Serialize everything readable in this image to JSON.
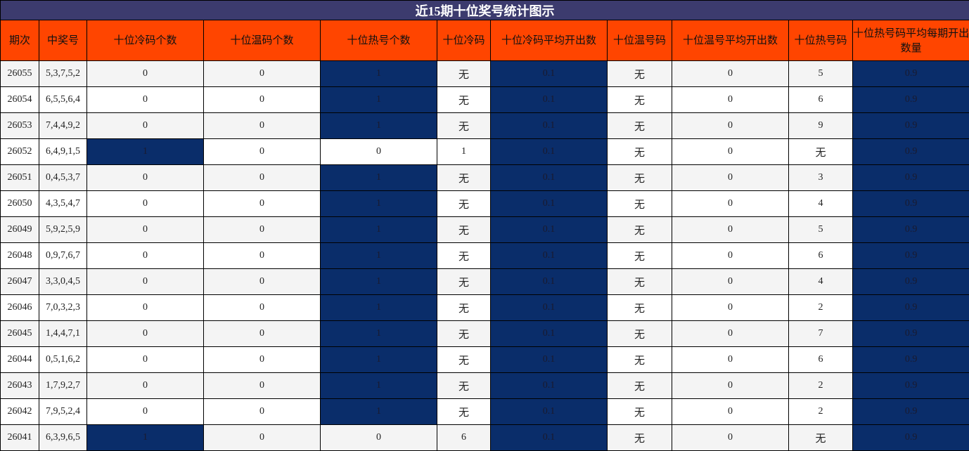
{
  "title": "近15期十位奖号统计图示",
  "highlight_color": "#0a2d6a",
  "header_color": "#ff4500",
  "headers": [
    "期次",
    "中奖号",
    "十位冷码个数",
    "十位温码个数",
    "十位热号个数",
    "十位冷码",
    "十位冷码平均开出数",
    "十位温号码",
    "十位温号平均开出数",
    "十位热号码",
    "十位热号码平均每期开出数量"
  ],
  "rows": [
    [
      "26055",
      "5,3,7,5,2",
      "0",
      "0",
      "1",
      "无",
      "0.1",
      "无",
      "0",
      "5",
      "0.9"
    ],
    [
      "26054",
      "6,5,5,6,4",
      "0",
      "0",
      "1",
      "无",
      "0.1",
      "无",
      "0",
      "6",
      "0.9"
    ],
    [
      "26053",
      "7,4,4,9,2",
      "0",
      "0",
      "1",
      "无",
      "0.1",
      "无",
      "0",
      "9",
      "0.9"
    ],
    [
      "26052",
      "6,4,9,1,5",
      "1",
      "0",
      "0",
      "1",
      "0.1",
      "无",
      "0",
      "无",
      "0.9"
    ],
    [
      "26051",
      "0,4,5,3,7",
      "0",
      "0",
      "1",
      "无",
      "0.1",
      "无",
      "0",
      "3",
      "0.9"
    ],
    [
      "26050",
      "4,3,5,4,7",
      "0",
      "0",
      "1",
      "无",
      "0.1",
      "无",
      "0",
      "4",
      "0.9"
    ],
    [
      "26049",
      "5,9,2,5,9",
      "0",
      "0",
      "1",
      "无",
      "0.1",
      "无",
      "0",
      "5",
      "0.9"
    ],
    [
      "26048",
      "0,9,7,6,7",
      "0",
      "0",
      "1",
      "无",
      "0.1",
      "无",
      "0",
      "6",
      "0.9"
    ],
    [
      "26047",
      "3,3,0,4,5",
      "0",
      "0",
      "1",
      "无",
      "0.1",
      "无",
      "0",
      "4",
      "0.9"
    ],
    [
      "26046",
      "7,0,3,2,3",
      "0",
      "0",
      "1",
      "无",
      "0.1",
      "无",
      "0",
      "2",
      "0.9"
    ],
    [
      "26045",
      "1,4,4,7,1",
      "0",
      "0",
      "1",
      "无",
      "0.1",
      "无",
      "0",
      "7",
      "0.9"
    ],
    [
      "26044",
      "0,5,1,6,2",
      "0",
      "0",
      "1",
      "无",
      "0.1",
      "无",
      "0",
      "6",
      "0.9"
    ],
    [
      "26043",
      "1,7,9,2,7",
      "0",
      "0",
      "1",
      "无",
      "0.1",
      "无",
      "0",
      "2",
      "0.9"
    ],
    [
      "26042",
      "7,9,5,2,4",
      "0",
      "0",
      "1",
      "无",
      "0.1",
      "无",
      "0",
      "2",
      "0.9"
    ],
    [
      "26041",
      "6,3,9,6,5",
      "1",
      "0",
      "0",
      "6",
      "0.1",
      "无",
      "0",
      "无",
      "0.9"
    ]
  ]
}
